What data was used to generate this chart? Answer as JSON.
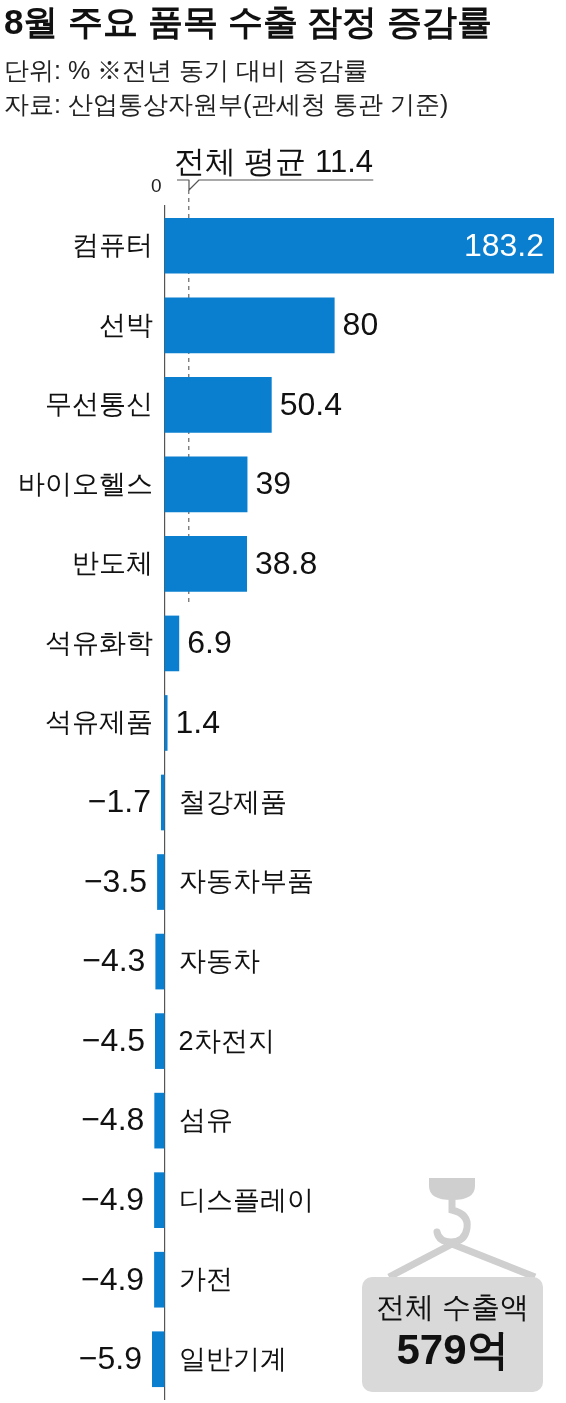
{
  "chart_data": {
    "type": "bar",
    "orientation": "horizontal",
    "title": "8월 주요 품목 수출 잠정 증감률",
    "subtitle": "단위: % ※전년 동기 대비 증감률",
    "annotations": [
      "자료: 산업통상자원부(관세청 통관 기준)",
      "0",
      "전체 수출액",
      "579억"
    ],
    "categories": [
      "컴퓨터",
      "선박",
      "무선통신",
      "바이오헬스",
      "반도체",
      "석유화학",
      "석유제품",
      "철강제품",
      "자동차부품",
      "자동차",
      "2차전지",
      "섬유",
      "디스플레이",
      "가전",
      "일반기계"
    ],
    "values": [
      183.2,
      80,
      50.4,
      39,
      38.8,
      6.9,
      1.4,
      -1.7,
      -3.5,
      -4.3,
      -4.5,
      -4.8,
      -4.9,
      -4.9,
      -5.9
    ],
    "value_labels": [
      "183.2",
      "80",
      "50.4",
      "39",
      "38.8",
      "6.9",
      "1.4",
      "−1.7",
      "−3.5",
      "−4.3",
      "−4.5",
      "−4.8",
      "−4.9",
      "−4.9",
      "−5.9"
    ],
    "color": "#0a7fd0",
    "ref_lines": [
      {
        "axis": "x",
        "value": 11.4,
        "label": "전체 평균 11.4",
        "color": "#666666",
        "line_style": "dashed"
      }
    ]
  }
}
